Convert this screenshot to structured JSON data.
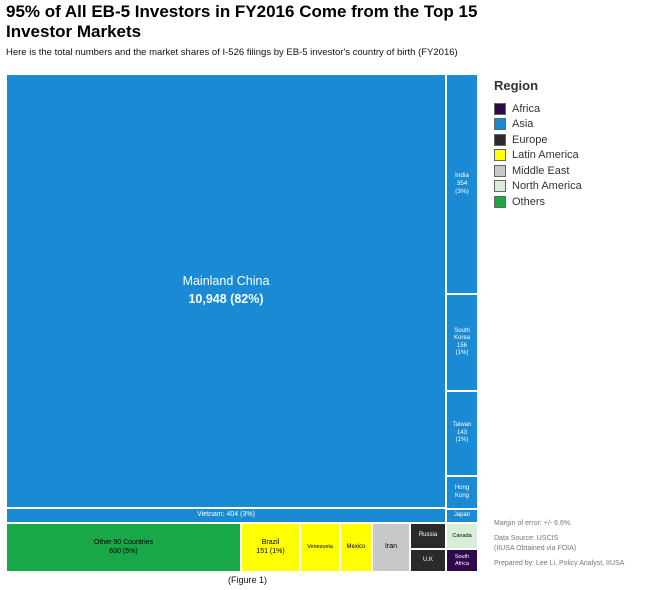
{
  "chart_data": {
    "type": "treemap",
    "title": "95% of All EB-5 Investors in FY2016 Come from the Top 15 Investor Markets",
    "subtitle": "Here is the total numbers and the market shares of I-526 filings by EB-5 investor's country of birth (FY2016)",
    "legend_title": "Region",
    "legend_placement": "right",
    "regions": [
      {
        "name": "Africa",
        "color": "#2e0a4a"
      },
      {
        "name": "Asia",
        "color": "#1a8ad4"
      },
      {
        "name": "Europe",
        "color": "#2a2a2a"
      },
      {
        "name": "Latin America",
        "color": "#ffff00"
      },
      {
        "name": "Middle East",
        "color": "#c8c8c8"
      },
      {
        "name": "North America",
        "color": "#d8eed8"
      },
      {
        "name": "Others",
        "color": "#18a848"
      }
    ],
    "tiles": [
      {
        "label": "Mainland China",
        "value": 10948,
        "value_text": "10,948 (82%)",
        "region": "Asia"
      },
      {
        "label": "Vietnam",
        "value": 404,
        "value_text": "404 (3%)",
        "region": "Asia"
      },
      {
        "label": "India",
        "value": 354,
        "value_text": "354 (3%)",
        "region": "Asia"
      },
      {
        "label": "South Korea",
        "value": 156,
        "value_text": "156 (1%)",
        "region": "Asia"
      },
      {
        "label": "Taiwan",
        "value": 143,
        "value_text": "143 (1%)",
        "region": "Asia"
      },
      {
        "label": "Hong Kong",
        "value": null,
        "value_text": "",
        "region": "Asia"
      },
      {
        "label": "Japan",
        "value": null,
        "value_text": "",
        "region": "Asia"
      },
      {
        "label": "Other 90 Countries",
        "value": 600,
        "value_text": "600 (5%)",
        "region": "Others"
      },
      {
        "label": "Brazil",
        "value": 151,
        "value_text": "151 (1%)",
        "region": "Latin America"
      },
      {
        "label": "Venezuela",
        "value": null,
        "value_text": "",
        "region": "Latin America"
      },
      {
        "label": "Mexico",
        "value": null,
        "value_text": "",
        "region": "Latin America"
      },
      {
        "label": "Iran",
        "value": null,
        "value_text": "",
        "region": "Middle East"
      },
      {
        "label": "Russia",
        "value": null,
        "value_text": "",
        "region": "Europe"
      },
      {
        "label": "U.K",
        "value": null,
        "value_text": "",
        "region": "Europe"
      },
      {
        "label": "Canada",
        "value": null,
        "value_text": "",
        "region": "North America"
      },
      {
        "label": "South Africa",
        "value": null,
        "value_text": "",
        "region": "Africa"
      }
    ]
  },
  "notes": {
    "margin_of_error": "Margin of error: +/- 6.6%.",
    "data_source": "Data Source: USCIS",
    "data_source_detail": "(IIUSA Obtained via FOIA)",
    "prepared_by": "Prepared by: Lee Li, Policy Analyst, IIUSA"
  },
  "caption": "(Figure 1)"
}
